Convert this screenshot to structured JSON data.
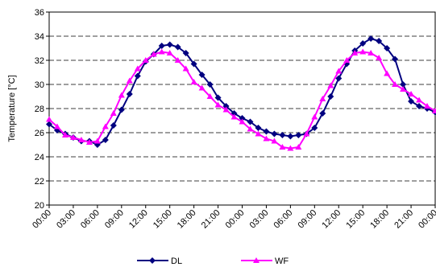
{
  "chart_data": {
    "type": "line",
    "ylabel": "Temperature [°C]",
    "ylim": [
      20,
      36
    ],
    "yticks": [
      20,
      22,
      24,
      26,
      28,
      30,
      32,
      34,
      36
    ],
    "x_tick_labels": [
      "00:00",
      "03:00",
      "06:00",
      "09:00",
      "12:00",
      "15:00",
      "18:00",
      "21:00",
      "00:00",
      "03:00",
      "06:00",
      "09:00",
      "12:00",
      "15:00",
      "18:00",
      "21:00",
      "00:00"
    ],
    "points_per_tick": 3,
    "grid": "horizontal dashed",
    "legend_position": "bottom",
    "series": [
      {
        "name": "DL",
        "color": "#000080",
        "marker": "diamond",
        "values": [
          26.7,
          26.2,
          25.9,
          25.6,
          25.3,
          25.3,
          25.0,
          25.4,
          26.6,
          27.9,
          29.2,
          30.7,
          31.9,
          32.5,
          33.2,
          33.3,
          33.1,
          32.6,
          31.7,
          30.8,
          30.0,
          28.9,
          28.2,
          27.6,
          27.2,
          26.9,
          26.4,
          26.1,
          25.9,
          25.8,
          25.7,
          25.8,
          25.9,
          26.4,
          27.6,
          29.0,
          30.5,
          31.7,
          32.8,
          33.4,
          33.8,
          33.6,
          33.0,
          32.1,
          30.0,
          28.6,
          28.2,
          28.0,
          27.7
        ]
      },
      {
        "name": "WF",
        "color": "#FF00FF",
        "marker": "triangle",
        "values": [
          27.1,
          26.5,
          25.8,
          25.6,
          25.4,
          25.2,
          25.3,
          26.5,
          27.6,
          29.1,
          30.3,
          31.3,
          32.0,
          32.5,
          32.7,
          32.6,
          32.0,
          31.3,
          30.2,
          29.7,
          29.0,
          28.3,
          27.9,
          27.3,
          26.9,
          26.3,
          25.9,
          25.5,
          25.3,
          24.8,
          24.7,
          24.8,
          25.9,
          27.3,
          28.8,
          29.9,
          31.1,
          32.0,
          32.6,
          32.7,
          32.6,
          32.2,
          30.9,
          30.0,
          29.6,
          29.2,
          28.7,
          28.2,
          27.8
        ]
      }
    ]
  }
}
